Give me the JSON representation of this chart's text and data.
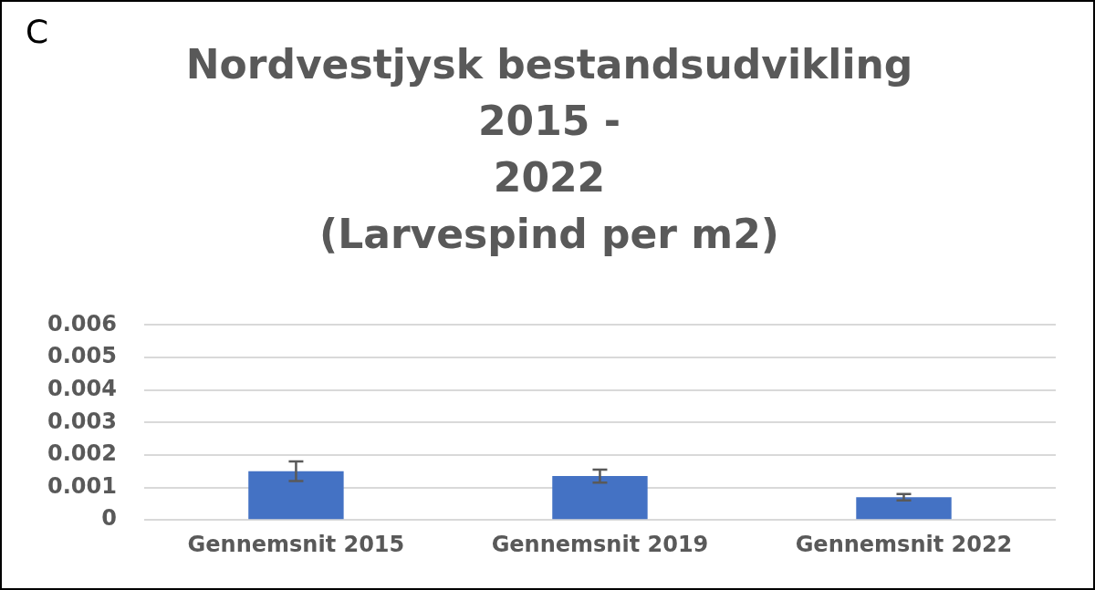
{
  "chart_data": {
    "type": "bar",
    "title": "Nordvestjysk bestandsudvikling 2015 -\n2022\n(Larvespind per m2)",
    "annotations": [
      "C"
    ],
    "categories": [
      "Gennemsnit 2015",
      "Gennemsnit 2019",
      "Gennemsnit 2022"
    ],
    "values": [
      0.0015,
      0.00135,
      0.0007
    ],
    "errors": [
      0.0003,
      0.0002,
      0.0001
    ],
    "color": "#4472c4",
    "ylim": [
      0,
      0.006
    ],
    "yticks": [
      0,
      0.001,
      0.002,
      0.003,
      0.004,
      0.005,
      0.006
    ],
    "grid": "y"
  }
}
